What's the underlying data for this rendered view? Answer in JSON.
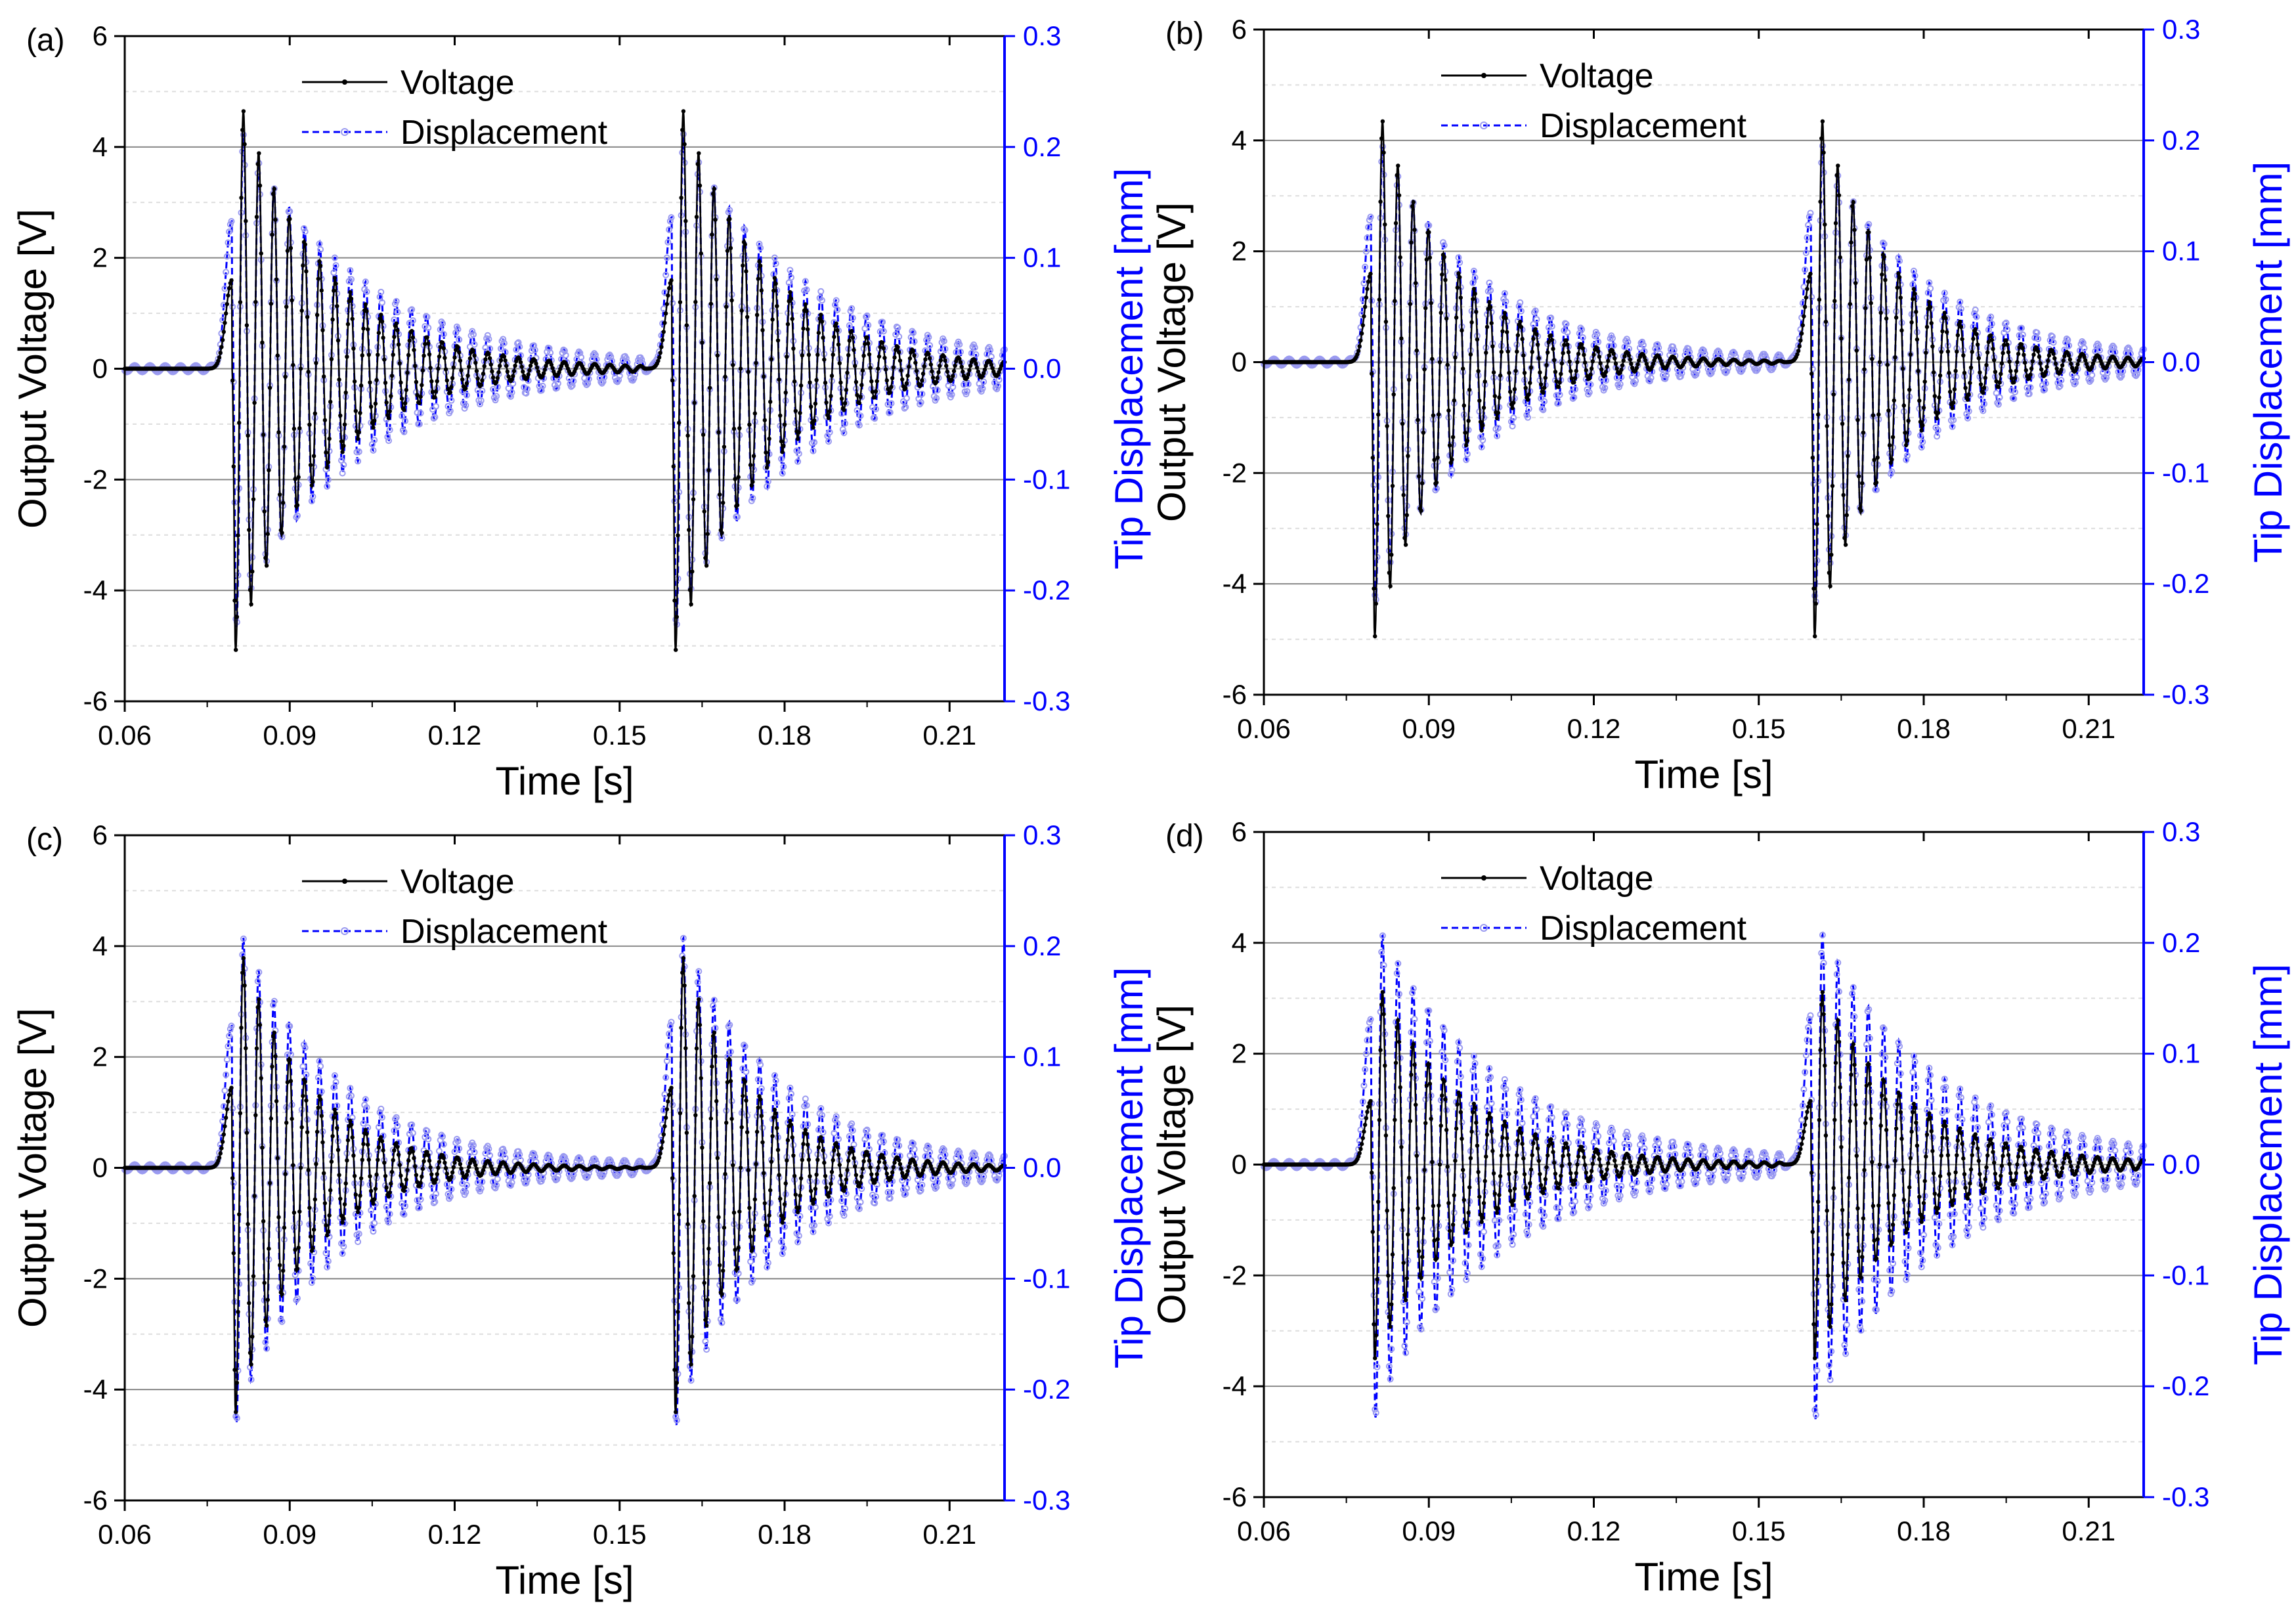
{
  "colors": {
    "voltage": "#000000",
    "displacement": "#0000ff",
    "displacement_markers": "#9a9af0",
    "grid": "#888888",
    "minor_grid": "#dddddd"
  },
  "chart_data": [
    {
      "type": "line",
      "panel_label": "(a)",
      "xlabel": "Time [s]",
      "ylabel_left": "Output Voltage [V]",
      "ylabel_right": "Tip Displacement [mm]",
      "xlim": [
        0.06,
        0.22
      ],
      "ylim_left": [
        -6,
        6
      ],
      "ylim_right": [
        -0.3,
        0.3
      ],
      "x_ticks": [
        "0.06",
        "0.09",
        "0.12",
        "0.15",
        "0.18",
        "0.21"
      ],
      "y_ticks_left": [
        "-6",
        "-4",
        "-2",
        "0",
        "2",
        "4",
        "6"
      ],
      "y_ticks_right": [
        "-0.3",
        "-0.2",
        "-0.1",
        "0.0",
        "0.1",
        "0.2",
        "0.3"
      ],
      "grid": true,
      "legend_position": "top-left",
      "series": [
        {
          "name": "Voltage",
          "axis": "left",
          "impulse_times": [
            0.0795,
            0.1595
          ],
          "peak_max": 5.3,
          "peak_min": -5.3,
          "first_lobe": 1.6,
          "frequency_hz": 360,
          "decay_time_s": 0.016
        },
        {
          "name": "Displacement",
          "axis": "right",
          "impulse_times": [
            0.0795,
            0.1595
          ],
          "peak_max": 0.135,
          "peak_min": -0.23,
          "frequency_hz": 360,
          "decay_time_s": 0.022
        }
      ]
    },
    {
      "type": "line",
      "panel_label": "(b)",
      "xlabel": "Time [s]",
      "ylabel_left": "Output Voltage [V]",
      "ylabel_right": "Tip Displacement [mm]",
      "xlim": [
        0.06,
        0.22
      ],
      "ylim_left": [
        -6,
        6
      ],
      "ylim_right": [
        -0.3,
        0.3
      ],
      "x_ticks": [
        "0.06",
        "0.09",
        "0.12",
        "0.15",
        "0.18",
        "0.21"
      ],
      "y_ticks_left": [
        "-6",
        "-4",
        "-2",
        "0",
        "2",
        "4",
        "6"
      ],
      "y_ticks_right": [
        "-0.3",
        "-0.2",
        "-0.1",
        "0.0",
        "0.1",
        "0.2",
        "0.3"
      ],
      "grid": true,
      "legend_position": "top-left",
      "series": [
        {
          "name": "Voltage",
          "axis": "left",
          "impulse_times": [
            0.0795,
            0.1595
          ],
          "peak_max": 5.05,
          "peak_min": -5.2,
          "first_lobe": 1.6,
          "frequency_hz": 360,
          "decay_time_s": 0.014
        },
        {
          "name": "Displacement",
          "axis": "right",
          "impulse_times": [
            0.0795,
            0.1595
          ],
          "peak_max": 0.133,
          "peak_min": -0.215,
          "frequency_hz": 360,
          "decay_time_s": 0.019
        }
      ]
    },
    {
      "type": "line",
      "panel_label": "(c)",
      "xlabel": "Time [s]",
      "ylabel_left": "Output Voltage [V]",
      "ylabel_right": "Tip Displacement [mm]",
      "xlim": [
        0.06,
        0.22
      ],
      "ylim_left": [
        -6,
        6
      ],
      "ylim_right": [
        -0.3,
        0.3
      ],
      "x_ticks": [
        "0.06",
        "0.09",
        "0.12",
        "0.15",
        "0.18",
        "0.21"
      ],
      "y_ticks_left": [
        "-6",
        "-4",
        "-2",
        "0",
        "2",
        "4",
        "6"
      ],
      "y_ticks_right": [
        "-0.3",
        "-0.2",
        "-0.1",
        "0.0",
        "0.1",
        "0.2",
        "0.3"
      ],
      "grid": true,
      "legend_position": "top-left",
      "series": [
        {
          "name": "Voltage",
          "axis": "left",
          "impulse_times": [
            0.0795,
            0.1595
          ],
          "peak_max": 4.45,
          "peak_min": -4.65,
          "first_lobe": 1.45,
          "frequency_hz": 360,
          "decay_time_s": 0.013
        },
        {
          "name": "Displacement",
          "axis": "right",
          "impulse_times": [
            0.0795,
            0.1595
          ],
          "peak_max": 0.13,
          "peak_min": -0.23,
          "frequency_hz": 360,
          "decay_time_s": 0.018
        }
      ]
    },
    {
      "type": "line",
      "panel_label": "(d)",
      "xlabel": "Time [s]",
      "ylabel_left": "Output Voltage [V]",
      "ylabel_right": "Tip Displacement [mm]",
      "xlim": [
        0.06,
        0.22
      ],
      "ylim_left": [
        -6,
        6
      ],
      "ylim_right": [
        -0.3,
        0.3
      ],
      "x_ticks": [
        "0.06",
        "0.09",
        "0.12",
        "0.15",
        "0.18",
        "0.21"
      ],
      "y_ticks_left": [
        "-6",
        "-4",
        "-2",
        "0",
        "2",
        "4",
        "6"
      ],
      "y_ticks_right": [
        "-0.3",
        "-0.2",
        "-0.1",
        "0.0",
        "0.1",
        "0.2",
        "0.3"
      ],
      "grid": true,
      "legend_position": "top-left",
      "series": [
        {
          "name": "Voltage",
          "axis": "left",
          "impulse_times": [
            0.0795,
            0.1595
          ],
          "peak_max": 3.55,
          "peak_min": -3.65,
          "first_lobe": 1.15,
          "frequency_hz": 360,
          "decay_time_s": 0.016
        },
        {
          "name": "Displacement",
          "axis": "right",
          "impulse_times": [
            0.0795,
            0.1595
          ],
          "peak_max": 0.133,
          "peak_min": -0.225,
          "frequency_hz": 360,
          "decay_time_s": 0.022
        }
      ]
    }
  ]
}
